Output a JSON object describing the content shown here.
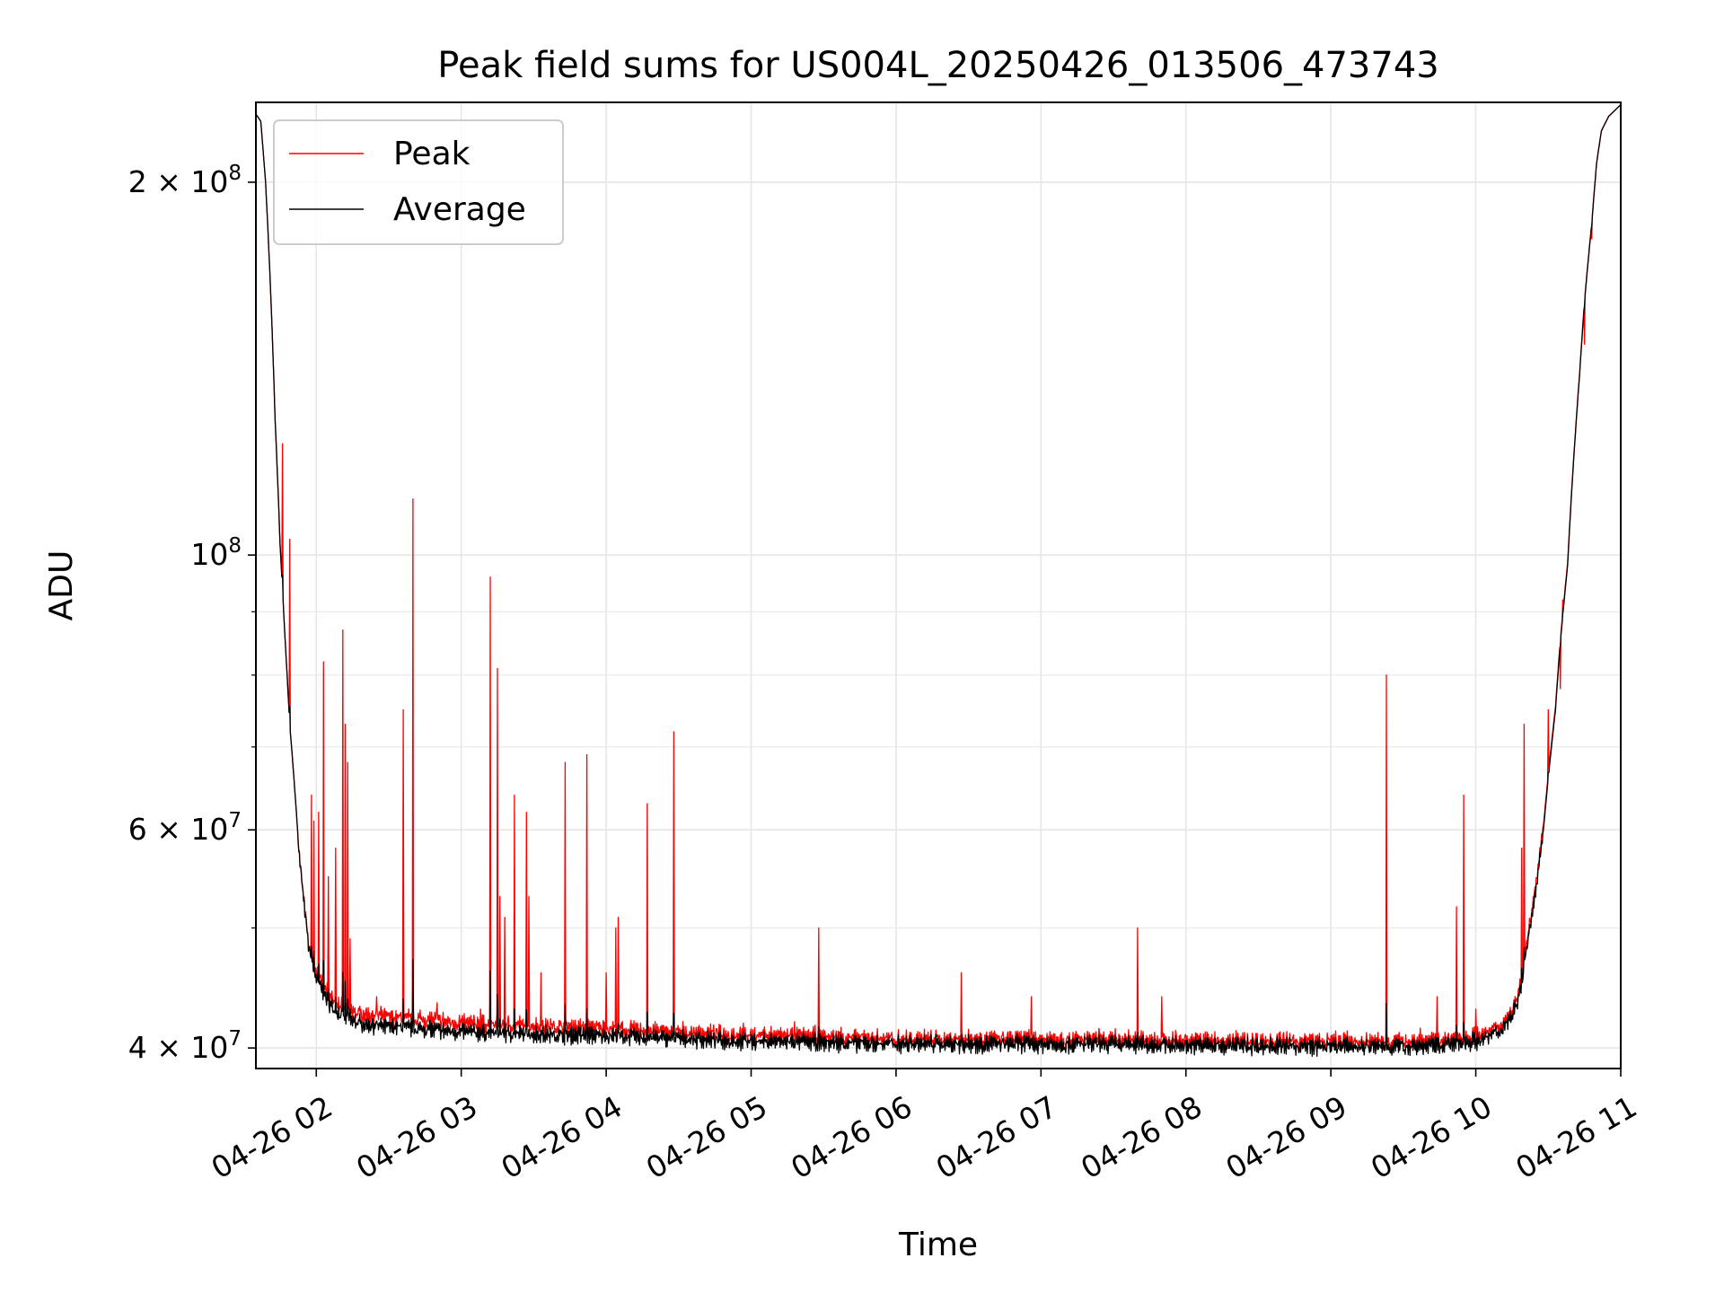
{
  "chart_data": {
    "type": "line",
    "title": "Peak field sums for US004L_20250426_013506_473743",
    "xlabel": "Time",
    "ylabel": "ADU",
    "yscale": "log",
    "grid": true,
    "legend_position": "upper-left",
    "x_ticks": [
      "04-26 02",
      "04-26 03",
      "04-26 04",
      "04-26 05",
      "04-26 06",
      "04-26 07",
      "04-26 08",
      "04-26 09",
      "04-26 10",
      "04-26 11"
    ],
    "y_ticks": [
      {
        "value": 40000000,
        "mantissa": "4",
        "exp": "7"
      },
      {
        "value": 60000000,
        "mantissa": "6",
        "exp": "7"
      },
      {
        "value": 100000000,
        "mantissa": "",
        "exp": "8"
      },
      {
        "value": 200000000,
        "mantissa": "2",
        "exp": "8"
      }
    ],
    "xlim": [
      "2025-04-26 01:35",
      "2025-04-26 11:00"
    ],
    "ylim": [
      38500000,
      232000000
    ],
    "baseline": {
      "x": [
        "01:35",
        "01:37",
        "01:39",
        "01:41",
        "01:43",
        "01:45",
        "01:47",
        "01:49",
        "01:51",
        "01:53",
        "01:55",
        "01:57",
        "02:00",
        "02:05",
        "02:10",
        "02:15",
        "02:20",
        "02:30",
        "02:45",
        "03:00",
        "03:30",
        "04:00",
        "04:30",
        "05:00",
        "06:00",
        "07:00",
        "08:00",
        "09:00",
        "09:30",
        "09:45",
        "09:50",
        "09:55",
        "10:00",
        "10:05",
        "10:10",
        "10:15",
        "10:18",
        "10:20",
        "10:22",
        "10:25",
        "10:28",
        "10:30",
        "10:33",
        "10:35",
        "10:38",
        "10:40",
        "10:43",
        "10:45",
        "10:48",
        "10:50",
        "10:52",
        "10:55",
        "10:58",
        "11:00"
      ],
      "average": [
        227000000,
        224000000,
        200000000,
        165000000,
        128000000,
        102000000,
        86000000,
        73000000,
        65000000,
        57000000,
        52000000,
        48000000,
        45500000,
        43500000,
        42500000,
        42000000,
        41800000,
        41600000,
        41400000,
        41200000,
        41000000,
        40900000,
        40700000,
        40500000,
        40300000,
        40300000,
        40200000,
        40100000,
        40100000,
        40200000,
        40300000,
        40400000,
        40500000,
        40800000,
        41300000,
        42500000,
        44000000,
        46500000,
        49500000,
        54000000,
        60000000,
        66000000,
        75000000,
        85000000,
        98000000,
        115000000,
        140000000,
        160000000,
        185000000,
        207000000,
        220000000,
        226000000,
        229000000,
        231000000
      ],
      "peak_offset": [
        0,
        0,
        0,
        0,
        0,
        0,
        0,
        0,
        0,
        0,
        0,
        0,
        400000,
        500000,
        600000,
        600000,
        600000,
        600000,
        600000,
        500000,
        500000,
        400000,
        300000,
        300000,
        200000,
        200000,
        200000,
        200000,
        200000,
        200000,
        200000,
        200000,
        200000,
        200000,
        200000,
        200000,
        300000,
        300000,
        400000,
        400000,
        500000,
        500000,
        500000,
        500000,
        500000,
        500000,
        500000,
        500000,
        500000,
        300000,
        200000,
        100000,
        0,
        0
      ]
    },
    "peak_spikes": [
      {
        "t": "01:46",
        "v": 123000000
      },
      {
        "t": "01:49",
        "v": 103000000
      },
      {
        "t": "01:58",
        "v": 64000000
      },
      {
        "t": "01:59",
        "v": 61000000
      },
      {
        "t": "02:01",
        "v": 62000000
      },
      {
        "t": "02:03",
        "v": 82000000
      },
      {
        "t": "02:05",
        "v": 55000000
      },
      {
        "t": "02:08",
        "v": 58000000
      },
      {
        "t": "02:11",
        "v": 87000000
      },
      {
        "t": "02:12",
        "v": 73000000
      },
      {
        "t": "02:13",
        "v": 68000000
      },
      {
        "t": "02:14",
        "v": 49000000
      },
      {
        "t": "02:25",
        "v": 44000000
      },
      {
        "t": "02:36",
        "v": 75000000
      },
      {
        "t": "02:40",
        "v": 111000000
      },
      {
        "t": "02:50",
        "v": 43500000
      },
      {
        "t": "03:08",
        "v": 43000000
      },
      {
        "t": "03:12",
        "v": 96000000
      },
      {
        "t": "03:15",
        "v": 81000000
      },
      {
        "t": "03:16",
        "v": 53000000
      },
      {
        "t": "03:18",
        "v": 51000000
      },
      {
        "t": "03:22",
        "v": 64000000
      },
      {
        "t": "03:27",
        "v": 62000000
      },
      {
        "t": "03:28",
        "v": 53000000
      },
      {
        "t": "03:33",
        "v": 46000000
      },
      {
        "t": "03:43",
        "v": 68000000
      },
      {
        "t": "03:52",
        "v": 69000000
      },
      {
        "t": "04:00",
        "v": 46000000
      },
      {
        "t": "04:04",
        "v": 50000000
      },
      {
        "t": "04:05",
        "v": 51000000
      },
      {
        "t": "04:17",
        "v": 63000000
      },
      {
        "t": "04:28",
        "v": 72000000
      },
      {
        "t": "05:18",
        "v": 42000000
      },
      {
        "t": "05:28",
        "v": 50000000
      },
      {
        "t": "06:27",
        "v": 46000000
      },
      {
        "t": "06:56",
        "v": 44000000
      },
      {
        "t": "07:40",
        "v": 50000000
      },
      {
        "t": "07:50",
        "v": 44000000
      },
      {
        "t": "09:23",
        "v": 80000000
      },
      {
        "t": "09:31",
        "v": 41000000
      },
      {
        "t": "09:37",
        "v": 41500000
      },
      {
        "t": "09:44",
        "v": 44000000
      },
      {
        "t": "09:52",
        "v": 52000000
      },
      {
        "t": "09:55",
        "v": 64000000
      },
      {
        "t": "10:00",
        "v": 43000000
      },
      {
        "t": "10:16",
        "v": 43000000
      },
      {
        "t": "10:19",
        "v": 58000000
      },
      {
        "t": "10:20",
        "v": 73000000
      },
      {
        "t": "10:30",
        "v": 75000000
      },
      {
        "t": "10:35",
        "v": 78000000
      },
      {
        "t": "10:36",
        "v": 92000000
      },
      {
        "t": "10:45",
        "v": 148000000
      },
      {
        "t": "10:48",
        "v": 180000000
      }
    ],
    "series": [
      {
        "name": "Peak",
        "color": "#ff0000"
      },
      {
        "name": "Average",
        "color": "#000000"
      }
    ]
  }
}
